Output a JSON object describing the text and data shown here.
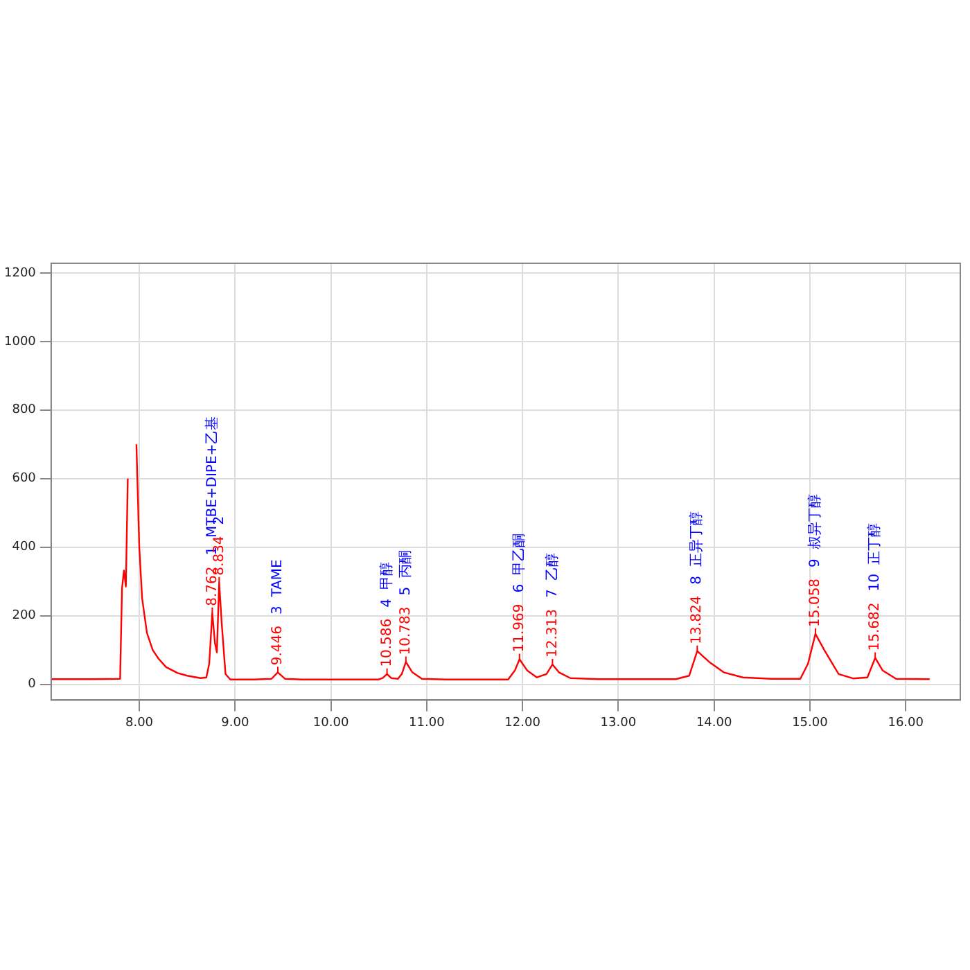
{
  "chart_data": {
    "type": "line",
    "x": [
      7.08,
      7.5,
      7.8,
      7.82,
      7.84,
      7.86,
      7.88,
      7.9,
      7.93,
      7.95,
      7.97,
      8.0,
      8.03,
      8.08,
      8.14,
      8.2,
      8.28,
      8.4,
      8.5,
      8.64,
      8.7,
      8.73,
      8.762,
      8.79,
      8.81,
      8.834,
      8.86,
      8.9,
      8.95,
      9.2,
      9.38,
      9.446,
      9.52,
      9.7,
      10.0,
      10.5,
      10.54,
      10.586,
      10.63,
      10.7,
      10.74,
      10.783,
      10.85,
      10.95,
      11.2,
      11.5,
      11.85,
      11.92,
      11.969,
      12.05,
      12.15,
      12.25,
      12.313,
      12.38,
      12.5,
      12.8,
      13.2,
      13.6,
      13.74,
      13.824,
      13.95,
      14.1,
      14.3,
      14.6,
      14.9,
      14.98,
      15.058,
      15.15,
      15.3,
      15.45,
      15.6,
      15.682,
      15.76,
      15.9,
      16.25
    ],
    "series": [
      {
        "color": "#ff0000",
        "values": [
          15,
          15,
          16,
          280,
          332,
          285,
          600,
          null,
          null,
          null,
          700,
          400,
          250,
          150,
          100,
          75,
          50,
          33,
          25,
          18,
          20,
          60,
          208,
          120,
          93,
          297,
          180,
          30,
          14,
          14,
          16,
          35,
          16,
          14,
          14,
          14,
          18,
          30,
          18,
          16,
          30,
          65,
          35,
          16,
          14,
          14,
          14,
          40,
          73,
          40,
          20,
          30,
          58,
          35,
          18,
          15,
          15,
          15,
          25,
          97,
          65,
          35,
          20,
          16,
          16,
          60,
          147,
          100,
          30,
          17,
          20,
          77,
          40,
          16,
          15
        ]
      }
    ],
    "xlim": [
      7.08,
      16.57
    ],
    "ylim": [
      -46,
      1228
    ],
    "xticks": [
      {
        "value": 8,
        "label": "8.00"
      },
      {
        "value": 9,
        "label": "9.00"
      },
      {
        "value": 10,
        "label": "10.00"
      },
      {
        "value": 11,
        "label": "11.00"
      },
      {
        "value": 12,
        "label": "12.00"
      },
      {
        "value": 13,
        "label": "13.00"
      },
      {
        "value": 14,
        "label": "14.00"
      },
      {
        "value": 15,
        "label": "15.00"
      },
      {
        "value": 16,
        "label": "16.00"
      }
    ],
    "yticks": [
      0,
      200,
      400,
      600,
      800,
      1000,
      1200
    ],
    "grid": true,
    "marker": "none",
    "line_style": "solid",
    "legend": false,
    "annotations": [
      {
        "text": "8.762",
        "x": 8.762,
        "y": 208
      },
      "1  MTBE+DIPE+乙基",
      {
        "text": "8.834",
        "x": 8.834,
        "y": 297
      },
      "2",
      {
        "text": "9.446",
        "x": 9.446,
        "y": 35
      },
      "3  TAME",
      {
        "text": "10.586",
        "x": 10.586,
        "y": 30
      },
      "4  甲醇",
      {
        "text": "10.783",
        "x": 10.783,
        "y": 65
      },
      "5  丙酮",
      {
        "text": "11.969",
        "x": 11.969,
        "y": 73
      },
      "6  甲乙酮",
      {
        "text": "12.313",
        "x": 12.313,
        "y": 58
      },
      "7  乙醇",
      {
        "text": "13.824",
        "x": 13.824,
        "y": 97
      },
      "8  正异丁醇",
      {
        "text": "15.058",
        "x": 15.058,
        "y": 147
      },
      "9  叔异丁醇",
      {
        "text": "15.682",
        "x": 15.682,
        "y": 77
      },
      "10  正丁醇"
    ]
  }
}
